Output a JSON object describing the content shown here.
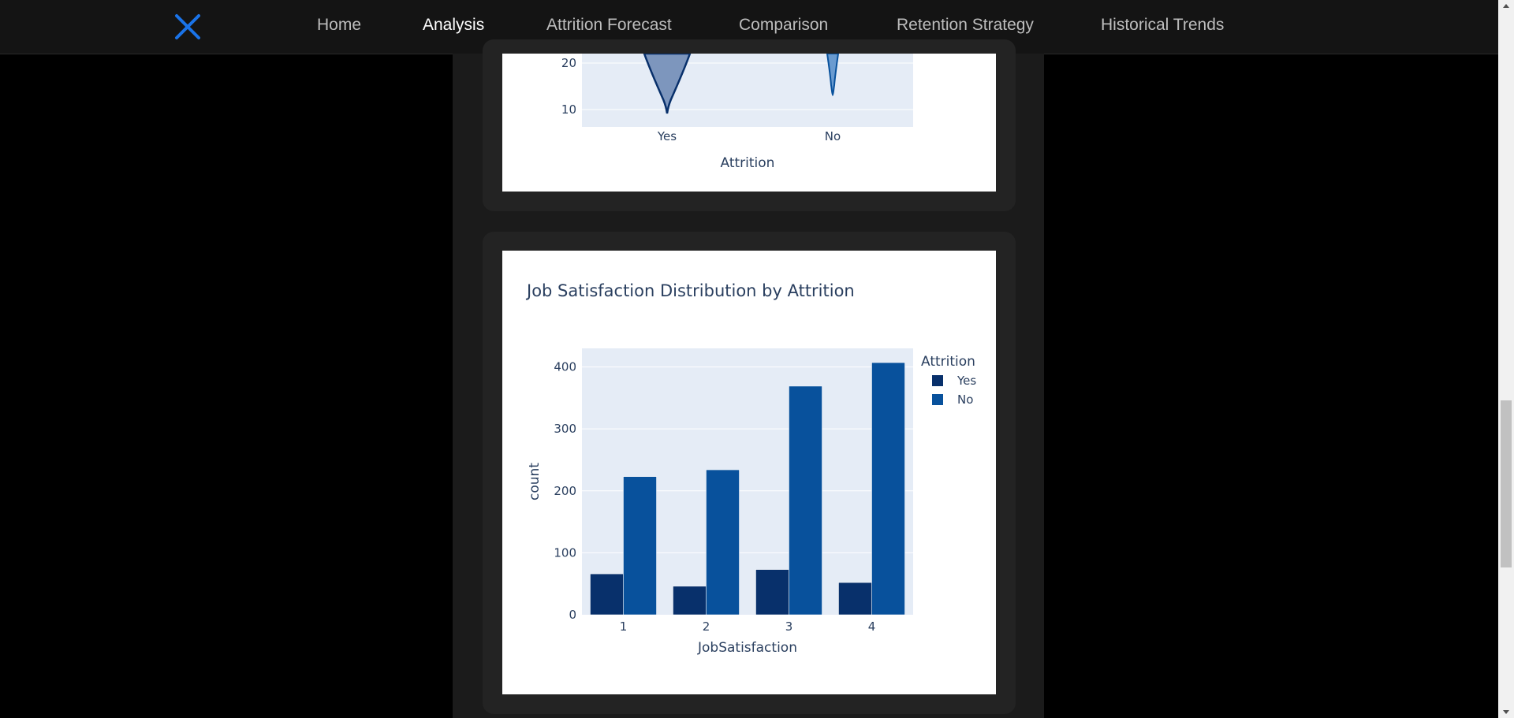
{
  "nav": {
    "logo_icon": "close-x-icon",
    "links": [
      {
        "label": "Home",
        "active": false
      },
      {
        "label": "Analysis",
        "active": true
      },
      {
        "label": "Attrition Forecast",
        "active": false
      },
      {
        "label": "Comparison",
        "active": false
      },
      {
        "label": "Retention Strategy",
        "active": false
      },
      {
        "label": "Historical Trends",
        "active": false
      }
    ]
  },
  "colors": {
    "accent": "#1a73e8",
    "series_yes": "#08306b",
    "series_no": "#08519c",
    "violin_yes_fill": "#7d96bd",
    "violin_no_fill": "#6a9bd0",
    "plot_bg": "#e5ecf6"
  },
  "top_chart": {
    "type": "violin",
    "y_ticks": [
      "20",
      "10"
    ],
    "categories": [
      "Yes",
      "No"
    ],
    "xlabel": "Attrition"
  },
  "chart_data": {
    "type": "bar",
    "title": "Job Satisfaction Distribution by Attrition",
    "xlabel": "JobSatisfaction",
    "ylabel": "count",
    "categories": [
      "1",
      "2",
      "3",
      "4"
    ],
    "series": [
      {
        "name": "Yes",
        "values": [
          66,
          46,
          73,
          52
        ]
      },
      {
        "name": "No",
        "values": [
          223,
          234,
          369,
          407
        ]
      }
    ],
    "ylim": [
      0,
      430
    ],
    "y_ticks": [
      0,
      100,
      200,
      300,
      400
    ],
    "legend_title": "Attrition",
    "legend_position": "top-right"
  }
}
